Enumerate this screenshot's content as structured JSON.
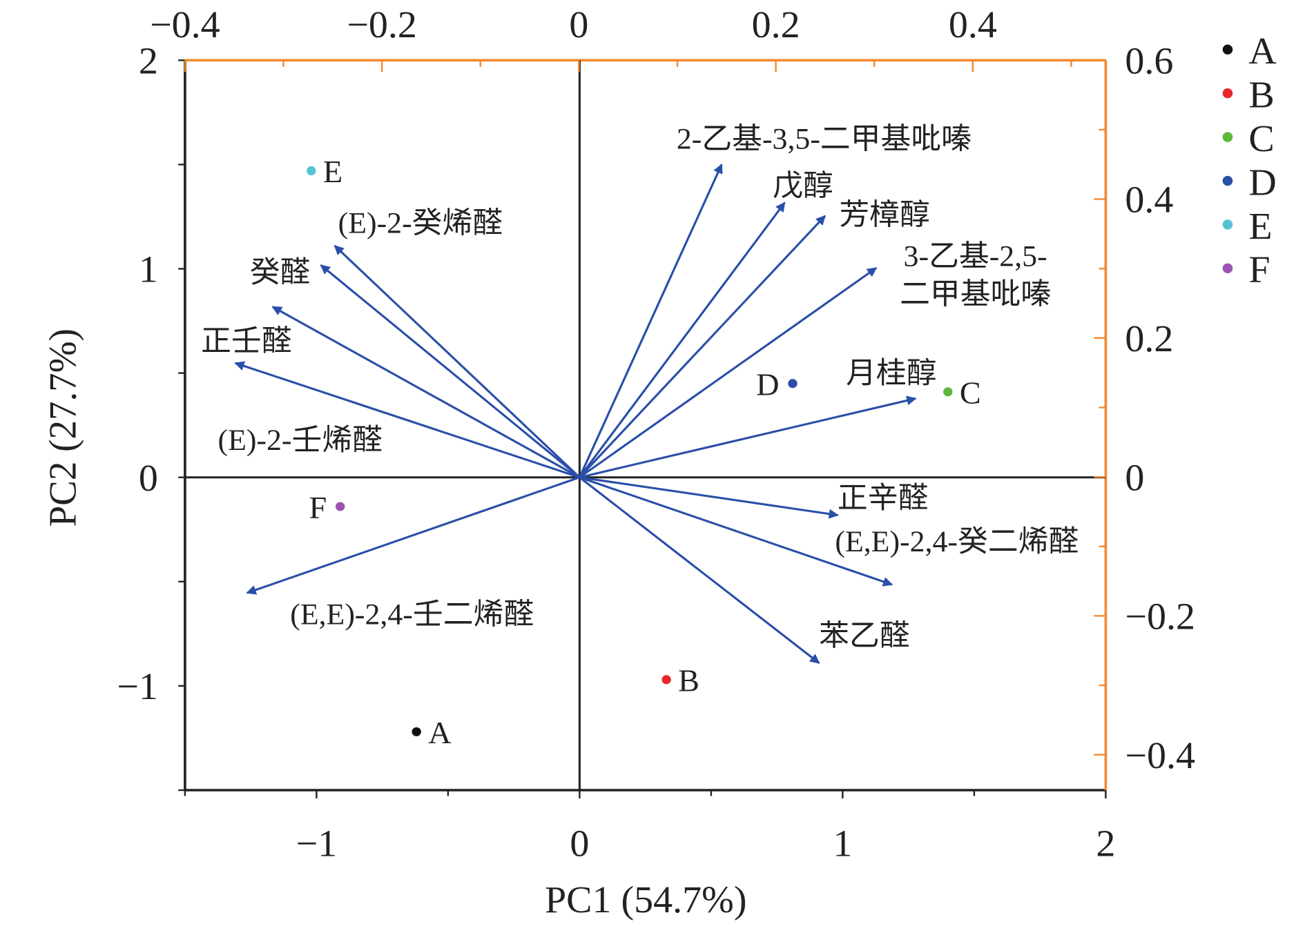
{
  "chart_data": {
    "type": "biplot",
    "xlabel": "PC1 (54.7%)",
    "ylabel": "PC2 (27.7%)",
    "xlim": [
      -1.5,
      2
    ],
    "ylim": [
      -1.5,
      2
    ],
    "x_ticks": [
      -1,
      0,
      1,
      2
    ],
    "y_ticks": [
      -1,
      0,
      1,
      2
    ],
    "top_axis": {
      "lim": [
        -0.4,
        0.535
      ],
      "ticks": [
        -0.4,
        -0.2,
        0,
        0.2,
        0.4
      ],
      "color": "#F08A2E"
    },
    "right_axis": {
      "lim": [
        -0.451,
        0.6
      ],
      "ticks": [
        -0.4,
        -0.2,
        0,
        0.2,
        0.4,
        0.6
      ],
      "color": "#F08A2E"
    },
    "grid": false,
    "legend_position": "right",
    "samples": [
      {
        "name": "A",
        "x": -0.62,
        "y": -1.22,
        "color": "#111111"
      },
      {
        "name": "B",
        "x": 0.33,
        "y": -0.97,
        "color": "#E8282B"
      },
      {
        "name": "C",
        "x": 1.4,
        "y": 0.41,
        "color": "#5DB83A"
      },
      {
        "name": "D",
        "x": 0.81,
        "y": 0.45,
        "color": "#2A4FA8"
      },
      {
        "name": "E",
        "x": -1.02,
        "y": 1.47,
        "color": "#55C3D2"
      },
      {
        "name": "F",
        "x": -0.91,
        "y": -0.14,
        "color": "#9B55B0"
      }
    ],
    "loadings": [
      {
        "name": "2-乙基-3,5-二甲基吡嗪",
        "x": 0.145,
        "y": 0.45
      },
      {
        "name": "戊醇",
        "x": 0.209,
        "y": 0.395
      },
      {
        "name": "芳樟醇",
        "x": 0.25,
        "y": 0.376
      },
      {
        "name": "3-乙基-2,5-",
        "name2": "二甲基吡嗪",
        "x": 0.302,
        "y": 0.301
      },
      {
        "name": "月桂醇",
        "x": 0.342,
        "y": 0.113
      },
      {
        "name": "正辛醛",
        "x": 0.263,
        "y": -0.055
      },
      {
        "name": "(E,E)-2,4-癸二烯醛",
        "x": 0.318,
        "y": -0.155
      },
      {
        "name": "苯乙醛",
        "x": 0.244,
        "y": -0.268
      },
      {
        "name": "(E,E)-2,4-壬二烯醛",
        "x": -0.337,
        "y": -0.167
      },
      {
        "name": "(E)-2-壬烯醛",
        "x": -0.349,
        "y": 0.164
      },
      {
        "name": "正壬醛",
        "x": -0.311,
        "y": 0.245
      },
      {
        "name": "癸醛",
        "x": -0.262,
        "y": 0.305
      },
      {
        "name": "(E)-2-癸烯醛",
        "x": -0.248,
        "y": 0.333
      }
    ],
    "arrow_color": "#2A4FA8"
  }
}
